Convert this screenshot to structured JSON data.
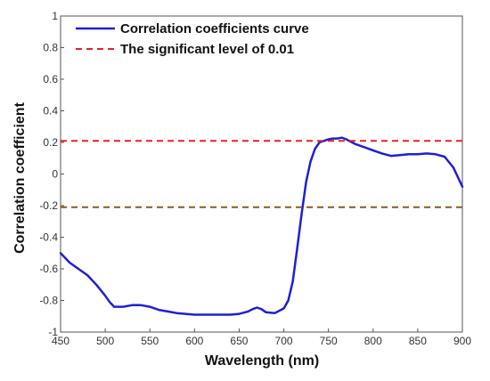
{
  "chart_data": {
    "type": "line",
    "xlabel": "Wavelength (nm)",
    "ylabel": "Correlation coefficient",
    "xlim": [
      450,
      900
    ],
    "ylim": [
      -1,
      1
    ],
    "x_ticks": [
      450,
      500,
      550,
      600,
      650,
      700,
      750,
      800,
      850,
      900
    ],
    "y_ticks": [
      -1,
      -0.8,
      -0.6,
      -0.4,
      -0.2,
      0,
      0.2,
      0.4,
      0.6,
      0.8,
      1
    ],
    "x_tick_labels": [
      "450",
      "500",
      "550",
      "600",
      "650",
      "700",
      "750",
      "800",
      "850",
      "900"
    ],
    "y_tick_labels": [
      "-1",
      "-0.8",
      "-0.6",
      "-0.4",
      "-0.2",
      "0",
      "0.2",
      "0.4",
      "0.6",
      "0.8",
      "1"
    ],
    "grid": false,
    "legend_position": "top-left",
    "series": [
      {
        "name": "Correlation coefficients curve",
        "color": "#1f1fd6",
        "style": "solid",
        "x": [
          450,
          460,
          470,
          480,
          490,
          500,
          505,
          510,
          520,
          530,
          540,
          550,
          560,
          570,
          580,
          590,
          600,
          610,
          620,
          630,
          640,
          650,
          660,
          665,
          670,
          675,
          680,
          690,
          700,
          705,
          710,
          715,
          720,
          725,
          730,
          735,
          740,
          745,
          750,
          755,
          760,
          765,
          770,
          780,
          790,
          800,
          810,
          820,
          830,
          840,
          850,
          860,
          870,
          880,
          890,
          895,
          900
        ],
        "y": [
          -0.5,
          -0.56,
          -0.6,
          -0.64,
          -0.7,
          -0.77,
          -0.81,
          -0.84,
          -0.84,
          -0.83,
          -0.83,
          -0.84,
          -0.86,
          -0.87,
          -0.88,
          -0.885,
          -0.89,
          -0.89,
          -0.89,
          -0.89,
          -0.89,
          -0.885,
          -0.87,
          -0.855,
          -0.845,
          -0.855,
          -0.875,
          -0.88,
          -0.85,
          -0.8,
          -0.68,
          -0.47,
          -0.25,
          -0.05,
          0.08,
          0.16,
          0.2,
          0.21,
          0.22,
          0.225,
          0.225,
          0.23,
          0.22,
          0.19,
          0.17,
          0.15,
          0.13,
          0.115,
          0.12,
          0.125,
          0.125,
          0.13,
          0.125,
          0.11,
          0.04,
          -0.02,
          -0.08
        ]
      },
      {
        "name": "The significant level of 0.01",
        "color": "#e52222",
        "style": "dashed",
        "x": [
          450,
          900
        ],
        "y": [
          0.21,
          0.21
        ]
      },
      {
        "name": "",
        "color": "#8a5a1a",
        "style": "dashed",
        "x": [
          450,
          900
        ],
        "y": [
          -0.21,
          -0.21
        ]
      }
    ]
  }
}
